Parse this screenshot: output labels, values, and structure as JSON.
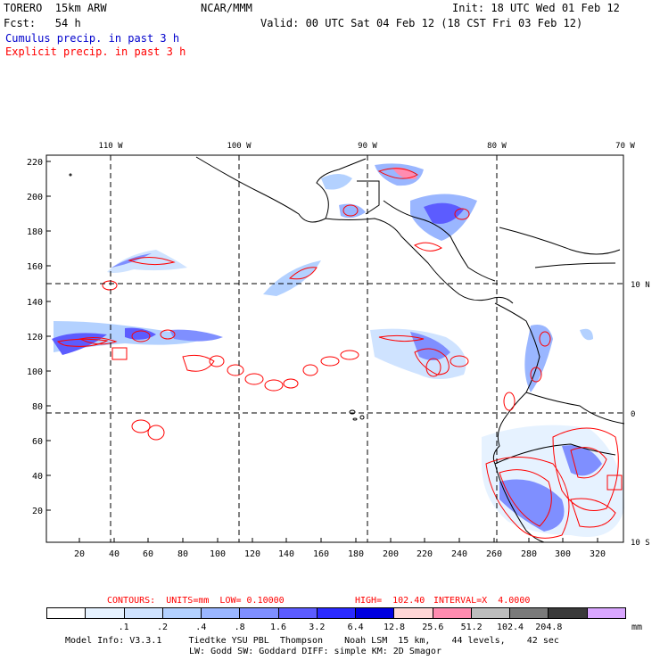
{
  "header": {
    "model": "TORERO  15km ARW",
    "org": "NCAR/MMM",
    "init": "Init: 18 UTC Wed 01 Feb 12",
    "fcst": "Fcst:   54 h",
    "valid": "Valid: 00 UTC Sat 04 Feb 12 (18 CST Fri 03 Feb 12)",
    "cumulus": "Cumulus precip. in past 3 h",
    "explicit": "Explicit precip. in past 3 h"
  },
  "colors": {
    "cumulus": "#0000cc",
    "explicit": "#ff0000",
    "contour": "#ff0000"
  },
  "map": {
    "lon_labels": [
      "110 W",
      "100 W",
      "90 W",
      "80 W",
      "70 W"
    ],
    "lat_labels": [
      "10 N",
      "0",
      "10 S"
    ],
    "y_ticks": [
      "220",
      "200",
      "180",
      "160",
      "140",
      "120",
      "100",
      "80",
      "60",
      "40",
      "20"
    ],
    "x_ticks": [
      "20",
      "40",
      "60",
      "80",
      "100",
      "120",
      "140",
      "160",
      "180",
      "200",
      "220",
      "240",
      "260",
      "280",
      "300",
      "320"
    ]
  },
  "contour_info": {
    "units": "CONTOURS:  UNITS=mm  LOW= 0.10000",
    "high": "HIGH=  102.40",
    "interval": "INTERVAL=X  4.0000"
  },
  "colorbar": {
    "colors": [
      "#ffffff",
      "#e6f2ff",
      "#cfe3ff",
      "#b3d1ff",
      "#9ab6ff",
      "#7f8fff",
      "#5c5cff",
      "#2a2aff",
      "#0000e0",
      "#ffd6d6",
      "#ff8cb0",
      "#bdbdbd",
      "#7a7a7a",
      "#3a3a3a",
      "#d9a6ff"
    ],
    "labels": [
      ".1",
      ".2",
      ".4",
      ".8",
      "1.6",
      "3.2",
      "6.4",
      "12.8",
      "25.6",
      "51.2",
      "102.4",
      "204.8"
    ],
    "unit": "mm"
  },
  "footer": {
    "line1": "Model Info: V3.3.1     Tiedtke YSU PBL  Thompson    Noah LSM  15 km,    44 levels,    42 sec",
    "line2": "LW: Godd SW: Goddard DIFF: simple KM: 2D Smagor"
  }
}
